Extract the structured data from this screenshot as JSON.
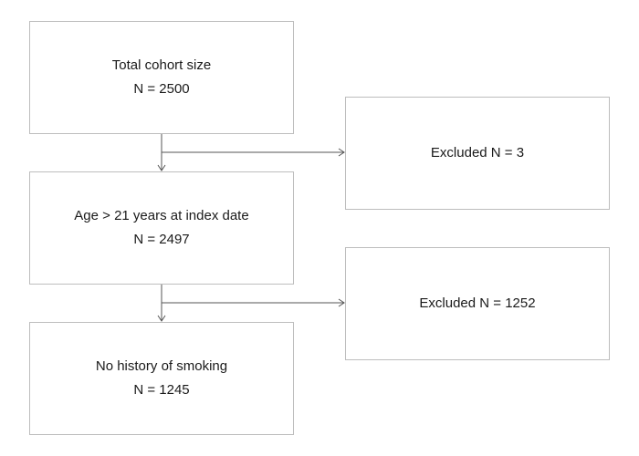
{
  "boxes": {
    "total": {
      "label": "Total cohort size",
      "count": "N = 2500"
    },
    "age": {
      "label": "Age > 21 years at index date",
      "count": "N = 2497"
    },
    "no_smoking": {
      "label": "No history of smoking",
      "count": "N = 1245"
    },
    "excluded_1": {
      "label": "Excluded N = 3"
    },
    "excluded_2": {
      "label": "Excluded N = 1252"
    }
  },
  "colors": {
    "border": "#bdbdbd",
    "connector": "#555555",
    "text": "#1a1a1a"
  }
}
